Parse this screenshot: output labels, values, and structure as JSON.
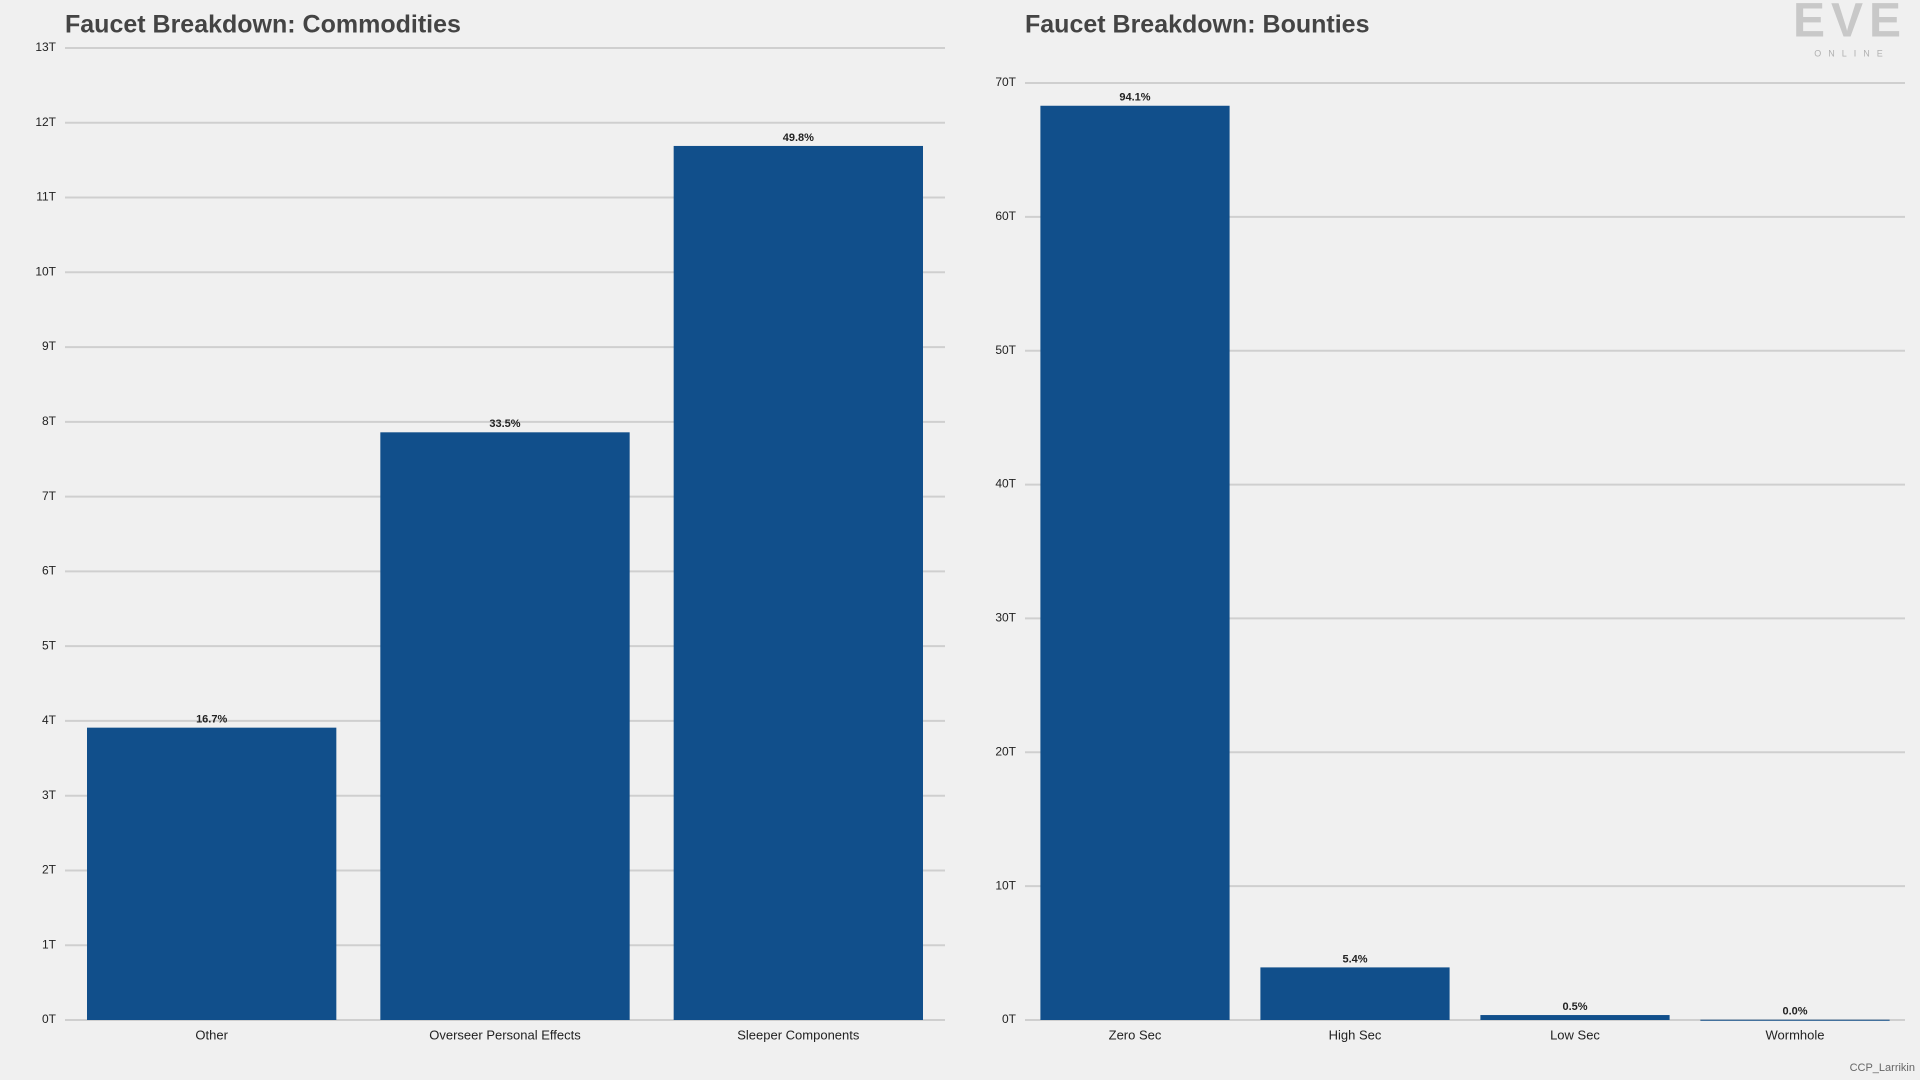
{
  "chart_data": [
    {
      "type": "bar",
      "title": "Faucet Breakdown: Commodities",
      "categories": [
        "Other",
        "Overseer Personal Effects",
        "Sleeper Components"
      ],
      "values": [
        3.91,
        7.86,
        11.69
      ],
      "bar_labels": [
        "16.7%",
        "33.5%",
        "49.8%"
      ],
      "color": "#114f8b",
      "ylim": [
        0,
        13
      ],
      "yticks": [
        {
          "value": 0,
          "label": "0T"
        },
        {
          "value": 1,
          "label": "1T"
        },
        {
          "value": 2,
          "label": "2T"
        },
        {
          "value": 3,
          "label": "3T"
        },
        {
          "value": 4,
          "label": "4T"
        },
        {
          "value": 5,
          "label": "5T"
        },
        {
          "value": 6,
          "label": "6T"
        },
        {
          "value": 7,
          "label": "7T"
        },
        {
          "value": 8,
          "label": "8T"
        },
        {
          "value": 9,
          "label": "9T"
        },
        {
          "value": 10,
          "label": "10T"
        },
        {
          "value": 11,
          "label": "11T"
        },
        {
          "value": 12,
          "label": "12T"
        },
        {
          "value": 13,
          "label": "13T"
        }
      ],
      "grid": true
    },
    {
      "type": "bar",
      "title": "Faucet Breakdown: Bounties",
      "categories": [
        "Zero Sec",
        "High Sec",
        "Low Sec",
        "Wormhole"
      ],
      "values": [
        68.3,
        3.93,
        0.37,
        0.02
      ],
      "bar_labels": [
        "94.1%",
        "5.4%",
        "0.5%",
        "0.0%"
      ],
      "color": "#114f8b",
      "ylim": [
        0,
        70
      ],
      "yticks": [
        {
          "value": 0,
          "label": "0T"
        },
        {
          "value": 10,
          "label": "10T"
        },
        {
          "value": 20,
          "label": "20T"
        },
        {
          "value": 30,
          "label": "30T"
        },
        {
          "value": 40,
          "label": "40T"
        },
        {
          "value": 50,
          "label": "50T"
        },
        {
          "value": 60,
          "label": "60T"
        },
        {
          "value": 70,
          "label": "70T"
        }
      ],
      "grid": true
    }
  ],
  "logo": {
    "title": "EVE",
    "subtitle": "ONLINE"
  },
  "credit": "CCP_Larrikin"
}
